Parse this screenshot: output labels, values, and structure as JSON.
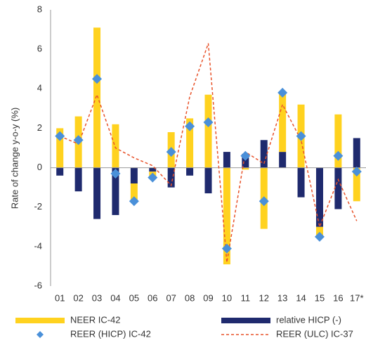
{
  "chart_data": {
    "type": "bar",
    "stacked": true,
    "y_label": "Rate of change y-o-y (%)",
    "categories": [
      "01",
      "02",
      "03",
      "04",
      "05",
      "06",
      "07",
      "08",
      "09",
      "10",
      "11",
      "12",
      "13",
      "14",
      "15",
      "16",
      "17*"
    ],
    "ylim": [
      -6,
      8
    ],
    "yticks": [
      -6,
      -4,
      -2,
      0,
      2,
      4,
      6,
      8
    ],
    "series": [
      {
        "name": "relative HICP (-)",
        "type": "bar",
        "color": "#1f2a6e",
        "values": [
          -0.4,
          -1.2,
          -2.6,
          -2.4,
          -0.8,
          -0.2,
          -1.0,
          -0.4,
          -1.3,
          0.8,
          0.7,
          1.4,
          0.8,
          -1.5,
          -3.0,
          -2.1,
          1.5
        ]
      },
      {
        "name": "NEER IC-42",
        "type": "bar",
        "color": "#ffd21f",
        "values": [
          2.0,
          2.6,
          7.1,
          2.2,
          -0.9,
          -0.3,
          1.8,
          2.5,
          3.7,
          -4.9,
          -0.1,
          -3.1,
          3.0,
          3.2,
          -0.5,
          2.7,
          -1.7
        ]
      },
      {
        "name": "REER (HICP) IC-42",
        "type": "scatter",
        "color": "#4a90d9",
        "values": [
          1.6,
          1.4,
          4.5,
          -0.3,
          -1.7,
          -0.5,
          0.8,
          2.1,
          2.3,
          -4.1,
          0.6,
          -1.7,
          3.8,
          1.6,
          -3.5,
          0.6,
          -0.2
        ]
      },
      {
        "name": "REER (ULC) IC-37",
        "type": "line",
        "color": "#e8532b",
        "values": [
          1.6,
          1.2,
          3.7,
          1.0,
          0.5,
          0.1,
          -0.9,
          3.6,
          6.3,
          -4.8,
          0.8,
          0.2,
          3.2,
          1.4,
          -3.0,
          -0.6,
          -2.7
        ]
      }
    ]
  }
}
